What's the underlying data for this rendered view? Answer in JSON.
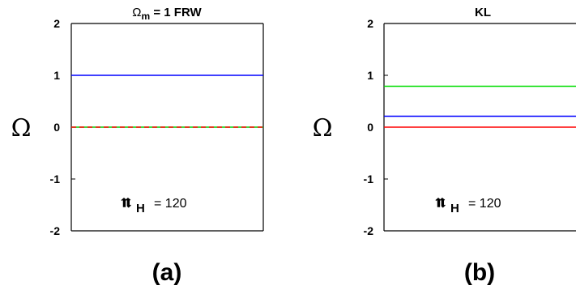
{
  "chart_data": [
    {
      "type": "line",
      "title_symbol": "Ω",
      "title_subscript": "m",
      "title_rest": " = 1  FRW",
      "ylabel": "Ω",
      "ylim": [
        -2,
        2
      ],
      "yticks": [
        "2",
        "1",
        "0",
        "-1",
        "-2"
      ],
      "annotation": {
        "symbol": "𝖓",
        "subscript": "H",
        "value": "= 120"
      },
      "caption": "(a)",
      "series": [
        {
          "color": "#0000ff",
          "y": 1.0,
          "style": "solid"
        },
        {
          "color": "#00cc00",
          "y": 0.0,
          "style": "solid"
        },
        {
          "color": "#ff0000",
          "y": 0.0,
          "style": "dashed"
        }
      ]
    },
    {
      "type": "line",
      "title_symbol": "",
      "title_subscript": "",
      "title_rest": "KL",
      "ylabel": "Ω",
      "ylim": [
        -2,
        2
      ],
      "yticks": [
        "2",
        "1",
        "0",
        "-1",
        "-2"
      ],
      "annotation": {
        "symbol": "𝖓",
        "subscript": "H",
        "value": "= 120"
      },
      "caption": "(b)",
      "series": [
        {
          "color": "#00dd00",
          "y": 0.79,
          "style": "solid"
        },
        {
          "color": "#0000ff",
          "y": 0.21,
          "style": "solid"
        },
        {
          "color": "#ff0000",
          "y": 0.0,
          "style": "solid"
        }
      ]
    }
  ]
}
